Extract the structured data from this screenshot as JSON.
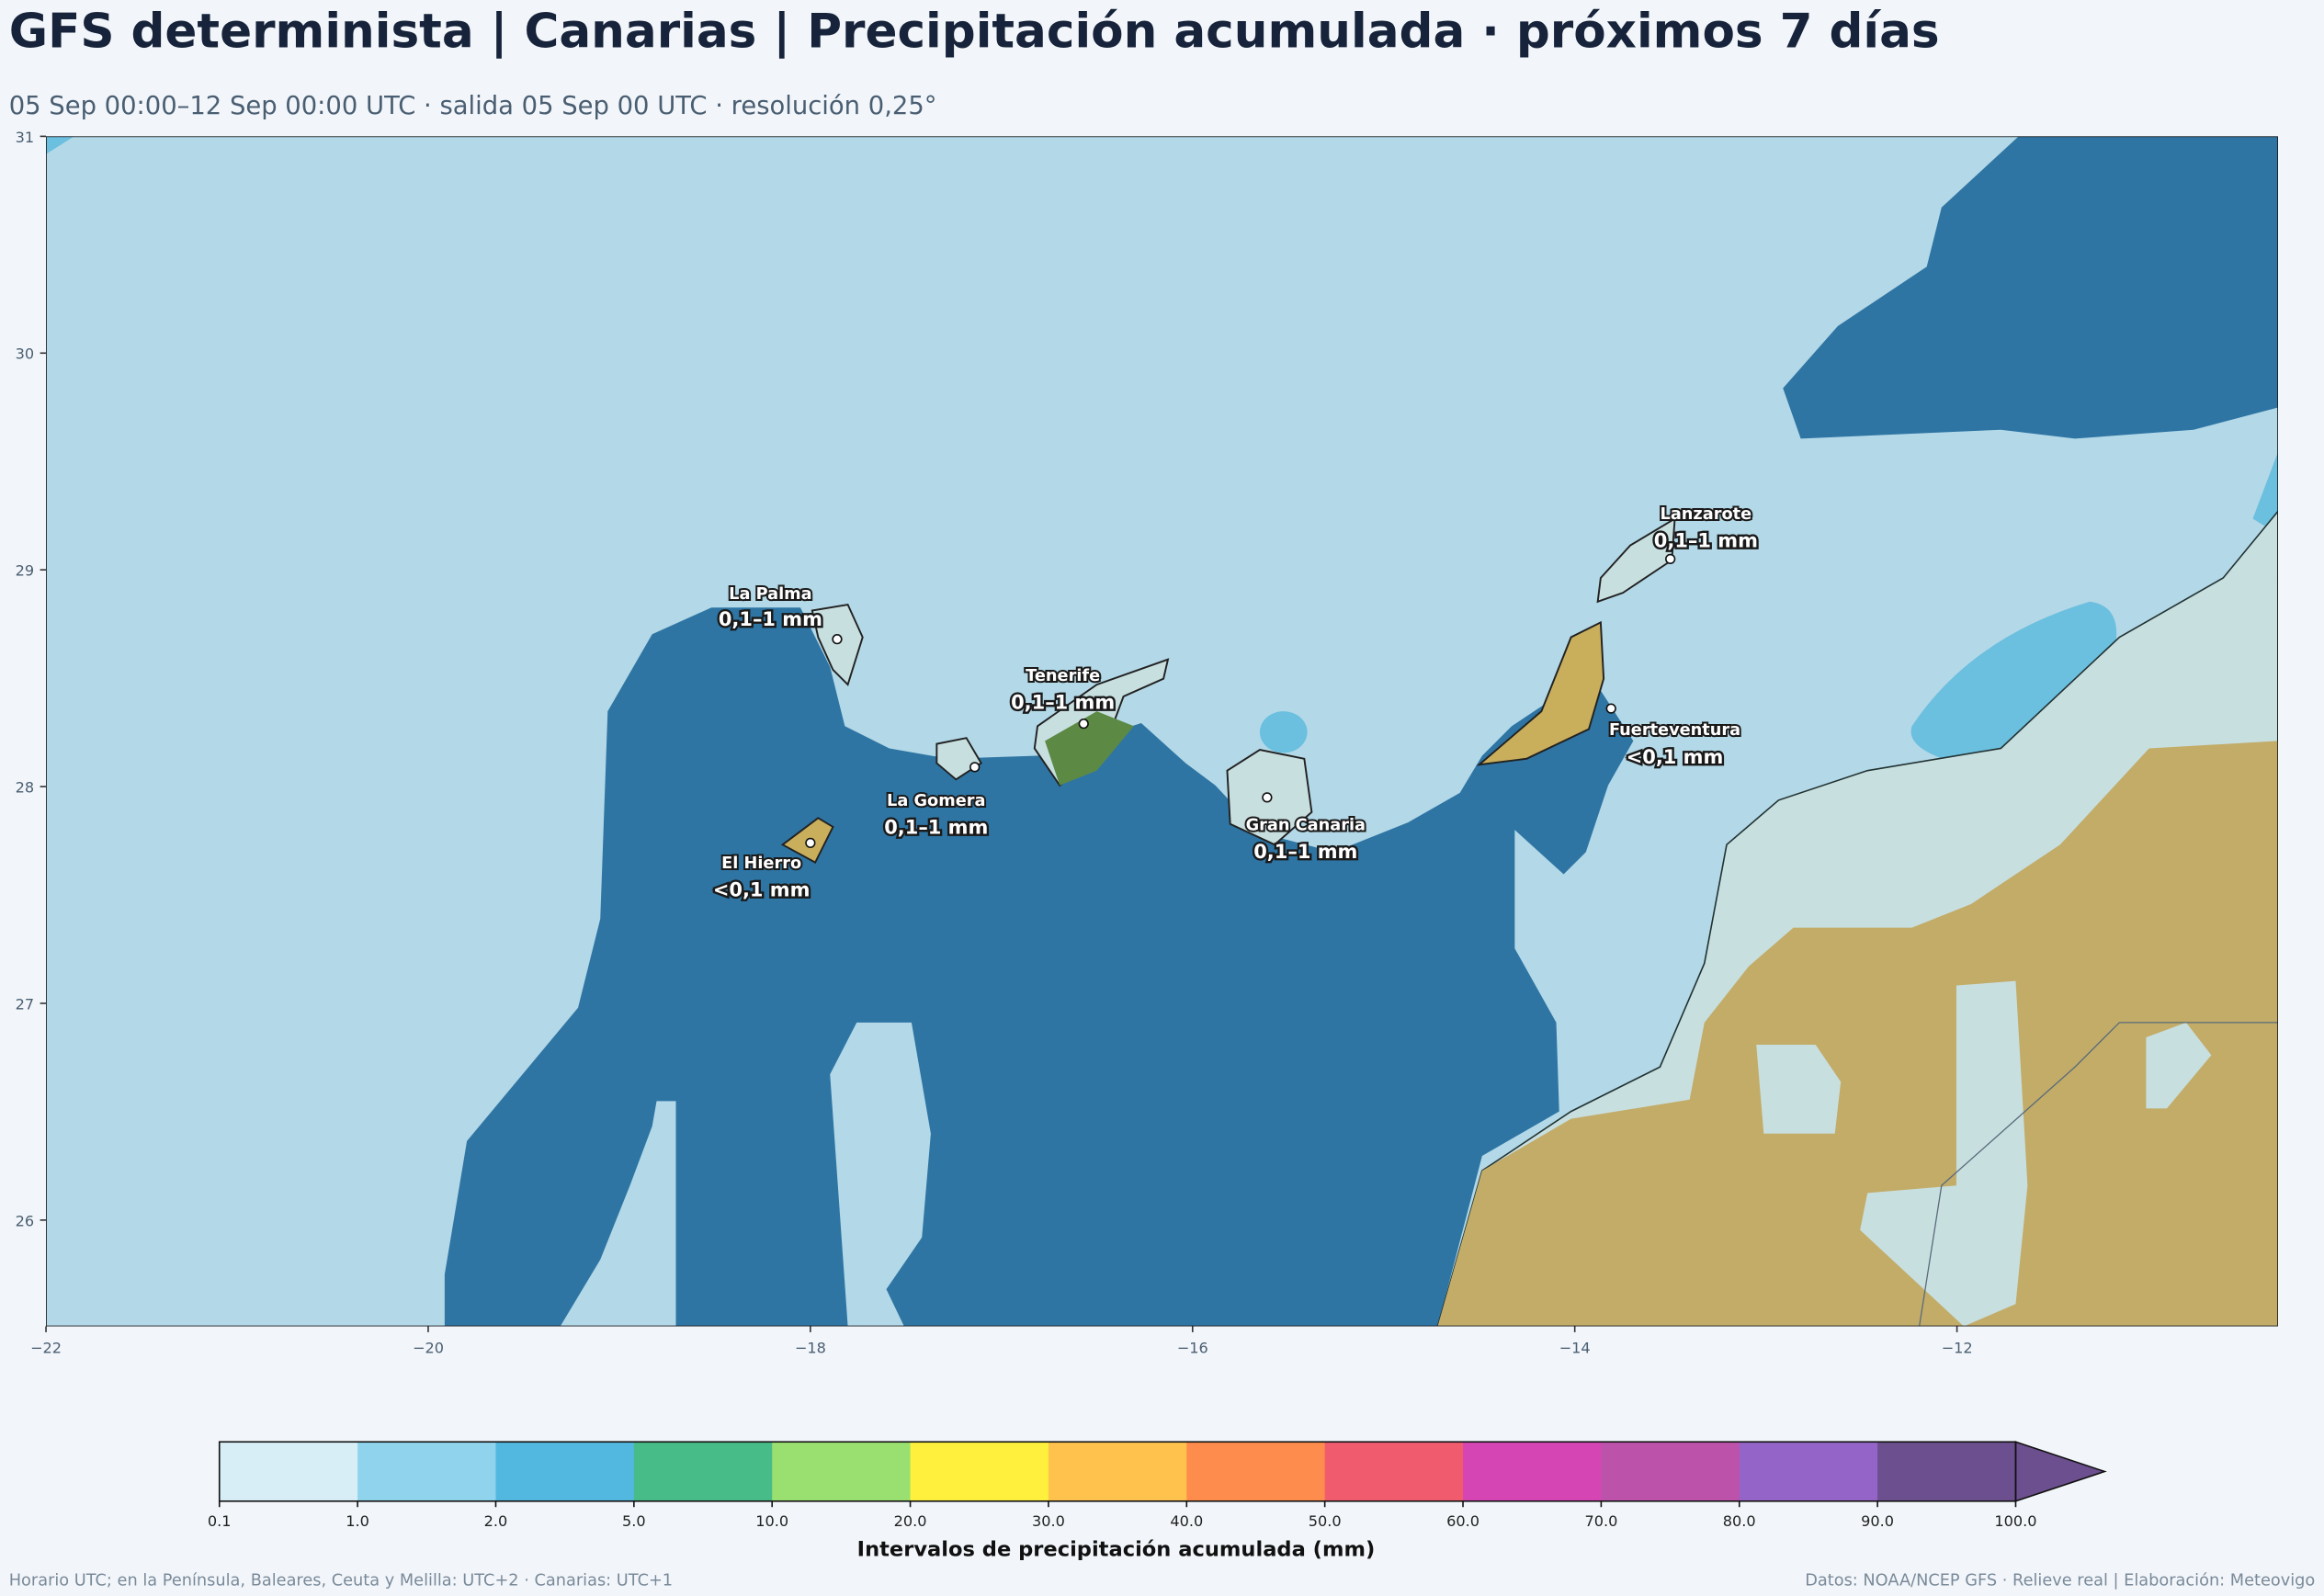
{
  "header": {
    "title": "GFS determinista | Canarias | Precipitación acumulada · próximos 7 días",
    "subtitle": "05 Sep 00:00–12 Sep 00:00 UTC · salida 05 Sep 00 UTC · resolución 0,25°"
  },
  "map": {
    "xlim": [
      -22,
      -10.32
    ],
    "ylim": [
      25.51,
      31
    ],
    "xticks": [
      {
        "value": -22,
        "label": "−22"
      },
      {
        "value": -20,
        "label": "−20"
      },
      {
        "value": -18,
        "label": "−18"
      },
      {
        "value": -16,
        "label": "−16"
      },
      {
        "value": -14,
        "label": "−14"
      },
      {
        "value": -12,
        "label": "−12"
      }
    ],
    "yticks": [
      26,
      27,
      28,
      29,
      30,
      31
    ],
    "islands": [
      {
        "name": "La Palma",
        "value_label": "0,1–1 mm",
        "lon": -17.86,
        "lat": 28.68
      },
      {
        "name": "Tenerife",
        "value_label": "0,1–1 mm",
        "lon": -16.57,
        "lat": 28.29
      },
      {
        "name": "La Gomera",
        "value_label": "0,1–1 mm",
        "lon": -17.14,
        "lat": 28.09
      },
      {
        "name": "El Hierro",
        "value_label": "<0,1 mm",
        "lon": -18.0,
        "lat": 27.74
      },
      {
        "name": "Gran Canaria",
        "value_label": "0,1–1 mm",
        "lon": -15.61,
        "lat": 27.95
      },
      {
        "name": "Lanzarote",
        "value_label": "0,1–1 mm",
        "lon": -13.5,
        "lat": 29.05
      },
      {
        "name": "Fuerteventura",
        "value_label": "<0,1 mm",
        "lon": -13.81,
        "lat": 28.36
      }
    ]
  },
  "colorbar": {
    "title": "Intervalos de precipitación acumulada (mm)",
    "bounds": [
      0.1,
      {
        "value": 1,
        "label": "1.0"
      },
      {
        "value": 2,
        "label": "2.0"
      },
      {
        "value": 5,
        "label": "5.0"
      },
      {
        "value": 10,
        "label": "10.0"
      },
      {
        "value": 20,
        "label": "20.0"
      },
      {
        "value": 30,
        "label": "30.0"
      },
      {
        "value": 40,
        "label": "40.0"
      },
      {
        "value": 50,
        "label": "50.0"
      },
      {
        "value": 60,
        "label": "60.0"
      },
      {
        "value": 70,
        "label": "70.0"
      },
      {
        "value": 80,
        "label": "80.0"
      },
      {
        "value": 90,
        "label": "90.0"
      },
      {
        "value": 100,
        "label": "100.0"
      }
    ],
    "colors": [
      "#d7eef6",
      "#8fd4ec",
      "#52b8e0",
      "#47bb88",
      "#9ae070",
      "#fef03c",
      "#fec24d",
      "#fe8c4c",
      "#f05c6e",
      "#d645b4",
      "#bd52ab",
      "#9464c8",
      "#6c4f8e"
    ],
    "extend_color": "#6c4f8e"
  },
  "footer": {
    "left": "Horario UTC; en la Península, Baleares, Ceuta y Melilla: UTC+2 · Canarias: UTC+1",
    "right": "Datos: NOAA/NCEP GFS · Relieve real | Elaboración: Meteovigo"
  }
}
